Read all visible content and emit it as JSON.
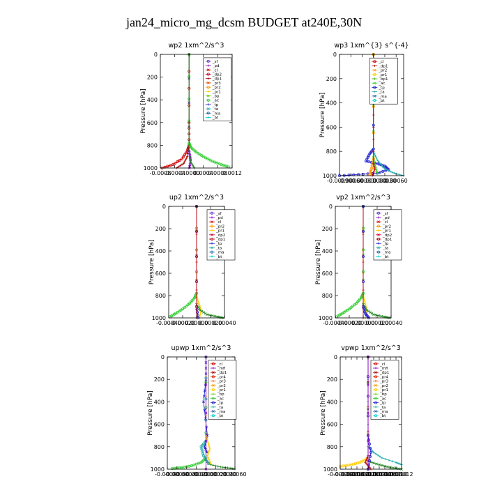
{
  "title": "jan24_micro_mg_dcsm  BUDGET at240E,30N",
  "chart_data": [
    {
      "type": "line",
      "title": "wp2   1xm^2/s^3",
      "ylabel": "Pressure [hPa]",
      "xlim": [
        -0.0008,
        0.0012
      ],
      "ylim": [
        1000,
        0
      ],
      "xticks": [
        -0.0008,
        -0.0004,
        0,
        0.0004,
        0.0008,
        0.0012
      ],
      "xticklabels": [
        "-0.0008",
        "-0.0004",
        "-0.0000",
        "0.0004",
        "0.0008",
        "0.0012"
      ],
      "yticks": [
        0,
        200,
        400,
        600,
        800,
        1000
      ],
      "legend": [
        "_sf",
        "_pd",
        "_cl",
        "_dp2",
        "_dp1",
        "_pr3",
        "_pr2",
        "_pr1",
        "_bp",
        "_ac",
        "_tp",
        "_ta",
        "_ma",
        "_bt"
      ],
      "legend_corner": [
        0.0004,
        30
      ],
      "series": [
        {
          "name": "_cl",
          "color": "#cc0000",
          "x": [
            0,
            0,
            0,
            -5e-05,
            -0.0002,
            -0.00045,
            -0.00075
          ],
          "y": [
            0,
            600,
            800,
            850,
            920,
            970,
            1000
          ]
        },
        {
          "name": "_dp1",
          "color": "#aa0000",
          "x": [
            0,
            0,
            -5e-05,
            -0.00015,
            -0.00035
          ],
          "y": [
            0,
            800,
            900,
            960,
            1000
          ]
        },
        {
          "name": "_pd",
          "color": "#8800cc",
          "x": [
            0,
            0,
            3e-05,
            4e-05,
            1e-05
          ],
          "y": [
            0,
            850,
            900,
            940,
            1000
          ]
        },
        {
          "name": "_ac",
          "color": "#33cc33",
          "x": [
            0,
            0,
            5e-05,
            0.0002,
            0.0004,
            0.00065,
            0.0009,
            0.0011
          ],
          "y": [
            0,
            780,
            820,
            860,
            900,
            940,
            970,
            990
          ]
        },
        {
          "name": "_pr1",
          "color": "#228822",
          "x": [
            0,
            0,
            5e-05,
            0.00015
          ],
          "y": [
            0,
            850,
            950,
            1000
          ]
        }
      ]
    },
    {
      "type": "line",
      "title": "wp3   1xm^{3} s^{-4}",
      "ylabel": "Pressure [hPa]",
      "xlim": [
        -0.0009,
        0.0008
      ],
      "ylim": [
        1000,
        0
      ],
      "xticks": [
        -0.0009,
        -0.0006,
        -0.0003,
        0,
        0.0003,
        0.0006
      ],
      "xticklabels": [
        "-0.00090",
        "-0.00060",
        "-0.00030",
        "0.000000",
        "0.00030",
        "0.00060"
      ],
      "yticks": [
        0,
        200,
        400,
        600,
        800,
        1000
      ],
      "legend": [
        "_cl",
        "_dp1",
        "_pr2",
        "_pr1",
        "_bp1",
        "_ac",
        "_tp",
        "_ta",
        "_ma",
        "_bt"
      ],
      "legend_corner": [
        -0.0001,
        30
      ],
      "series": [
        {
          "name": "_tp",
          "color": "#2222cc",
          "x": [
            0,
            0,
            -0.0001,
            -0.0002,
            0.0001,
            0.0003,
            0.0004,
            0.0001,
            -0.0004,
            -0.0009
          ],
          "y": [
            0,
            780,
            820,
            880,
            900,
            920,
            950,
            980,
            990,
            1000
          ]
        },
        {
          "name": "_ta",
          "color": "#22aaaa",
          "x": [
            0,
            0,
            0.0001,
            0.00025,
            0.0004,
            0.0006,
            0.0008
          ],
          "y": [
            0,
            800,
            870,
            930,
            960,
            985,
            1000
          ]
        },
        {
          "name": "_ac",
          "color": "#33cc33",
          "x": [
            0,
            0,
            5e-05,
            0.0001
          ],
          "y": [
            0,
            850,
            930,
            980
          ]
        },
        {
          "name": "_pr2",
          "color": "#ff9900",
          "x": [
            0,
            0,
            -5e-05,
            -0.0001
          ],
          "y": [
            0,
            860,
            940,
            990
          ]
        },
        {
          "name": "_cl",
          "color": "#cc0000",
          "x": [
            0,
            0,
            0,
            3e-05,
            -3e-05
          ],
          "y": [
            0,
            500,
            900,
            950,
            1000
          ]
        }
      ]
    },
    {
      "type": "line",
      "title": "up2   1xm^2/s^3",
      "ylabel": "Pressure [hPa]",
      "xlim": [
        -0.0004,
        0.0004
      ],
      "ylim": [
        1000,
        0
      ],
      "xticks": [
        -0.0004,
        -0.0002,
        0,
        0.0002,
        0.0004
      ],
      "xticklabels": [
        "-0.00040",
        "-0.00020",
        "0.00000",
        "0.00020",
        "0.00040"
      ],
      "yticks": [
        0,
        200,
        400,
        600,
        800,
        1000
      ],
      "legend": [
        "_sf",
        "_pd",
        "_cl",
        "_pr2",
        "_pr1",
        "_dp2",
        "_dp1",
        "_tp",
        "_ta",
        "_ma",
        "_bt"
      ],
      "legend_corner": [
        0.00015,
        30
      ],
      "series": [
        {
          "name": "_dp2",
          "color": "#33cc33",
          "x": [
            0,
            0,
            -3e-05,
            -0.0001,
            -0.0002,
            -0.0003,
            -0.00038
          ],
          "y": [
            0,
            780,
            820,
            870,
            920,
            960,
            990
          ]
        },
        {
          "name": "_pr1",
          "color": "#ffcc00",
          "x": [
            0,
            0,
            2e-05,
            5e-05,
            6e-05,
            4e-05
          ],
          "y": [
            0,
            800,
            850,
            900,
            950,
            1000
          ]
        },
        {
          "name": "_dp1",
          "color": "#228822",
          "x": [
            0,
            0,
            5e-05,
            0.00015,
            0.0003,
            0.00038
          ],
          "y": [
            0,
            880,
            930,
            970,
            990,
            1000
          ]
        },
        {
          "name": "_tp",
          "color": "#2222cc",
          "x": [
            0,
            0,
            2e-05
          ],
          "y": [
            0,
            900,
            1000
          ]
        },
        {
          "name": "_cl",
          "color": "#cc0000",
          "x": [
            0,
            0
          ],
          "y": [
            0,
            1000
          ]
        }
      ]
    },
    {
      "type": "line",
      "title": "vp2   1xm^2/s^3",
      "ylabel": "Pressure [hPa]",
      "xlim": [
        -0.0004,
        0.0004
      ],
      "ylim": [
        1000,
        0
      ],
      "xticks": [
        -0.0004,
        -0.0002,
        0,
        0.0002,
        0.0004
      ],
      "xticklabels": [
        "-0.00040",
        "-0.00020",
        "0.00000",
        "0.00020",
        "0.00040"
      ],
      "yticks": [
        0,
        200,
        400,
        600,
        800,
        1000
      ],
      "legend": [
        "_sf",
        "_pd",
        "_cl",
        "_pr2",
        "_pr1",
        "_dp2",
        "_dp1",
        "_tp",
        "_ta",
        "_ma",
        "_bt"
      ],
      "legend_corner": [
        0.00015,
        30
      ],
      "series": [
        {
          "name": "_dp2",
          "color": "#33cc33",
          "x": [
            0,
            0,
            -3e-05,
            -0.0001,
            -0.0002,
            -0.0003,
            -0.00038
          ],
          "y": [
            0,
            780,
            820,
            870,
            920,
            960,
            990
          ]
        },
        {
          "name": "_pr1",
          "color": "#ffcc00",
          "x": [
            0,
            0,
            2e-05,
            4e-05,
            5e-05,
            3e-05
          ],
          "y": [
            0,
            800,
            850,
            900,
            950,
            1000
          ]
        },
        {
          "name": "_dp1",
          "color": "#228822",
          "x": [
            0,
            0,
            5e-05,
            0.00015,
            0.0003,
            0.00038
          ],
          "y": [
            0,
            880,
            930,
            970,
            990,
            1000
          ]
        },
        {
          "name": "_tp",
          "color": "#2222cc",
          "x": [
            0,
            0,
            3e-05,
            8e-05
          ],
          "y": [
            0,
            900,
            960,
            1000
          ]
        },
        {
          "name": "_cl",
          "color": "#cc0000",
          "x": [
            0,
            0
          ],
          "y": [
            0,
            1000
          ]
        }
      ]
    },
    {
      "type": "line",
      "title": "upwp   1xm^2/s^3",
      "ylabel": "Pressure [hPa]",
      "xlim": [
        -0.0008,
        0.0006
      ],
      "ylim": [
        1000,
        0
      ],
      "xticks": [
        -0.0008,
        -0.0006,
        -0.0004,
        -0.0002,
        0,
        0.0002,
        0.0004,
        0.0006
      ],
      "xticklabels": [
        "-0.00080",
        "-0.00060",
        "-0.00040",
        "-0.00020",
        "0.00000",
        "0.00020",
        "0.00040",
        "0.00060"
      ],
      "yticks": [
        0,
        200,
        400,
        600,
        800,
        1000
      ],
      "legend": [
        "_cl",
        "_mfl",
        "_dp1",
        "_pr4",
        "_pr3",
        "_pr2",
        "_pr1",
        "_bp",
        "_ac",
        "_tp",
        "_ta",
        "_ma",
        "_bt"
      ],
      "legend_corner": [
        5e-05,
        30
      ],
      "series": [
        {
          "name": "_ac",
          "color": "#33cc33",
          "x": [
            0,
            0,
            -0.0001,
            -0.0003,
            -0.0005,
            -0.0007
          ],
          "y": [
            0,
            900,
            940,
            970,
            985,
            995
          ]
        },
        {
          "name": "_pr1",
          "color": "#228822",
          "x": [
            0,
            0,
            0.0001,
            0.0003,
            0.0005,
            0.0006
          ],
          "y": [
            0,
            920,
            960,
            980,
            990,
            1000
          ]
        },
        {
          "name": "_tp",
          "color": "#2222cc",
          "x": [
            0,
            0,
            -5e-05,
            3e-05,
            -3e-05,
            2e-05
          ],
          "y": [
            0,
            200,
            400,
            700,
            800,
            850
          ]
        },
        {
          "name": "_ta",
          "color": "#22aaaa",
          "x": [
            0,
            0,
            -0.0001,
            -5e-05,
            5e-05
          ],
          "y": [
            0,
            750,
            800,
            880,
            950
          ]
        },
        {
          "name": "_pr2",
          "color": "#ffcc00",
          "x": [
            0,
            0,
            5e-05,
            8e-05,
            3e-05,
            0.0001
          ],
          "y": [
            0,
            700,
            770,
            820,
            880,
            950
          ]
        },
        {
          "name": "_mfl",
          "color": "#8800cc",
          "x": [
            0,
            0
          ],
          "y": [
            0,
            1000
          ]
        }
      ]
    },
    {
      "type": "line",
      "title": "vpwp   1xm^2/s^3",
      "ylabel": "Pressure [hPa]",
      "xlim": [
        -0.0001,
        0.00012
      ],
      "ylim": [
        1000,
        0
      ],
      "xticks": [
        -0.0001,
        -8e-05,
        -6e-05,
        -4e-05,
        -2e-05,
        0,
        2e-05,
        4e-05,
        6e-05,
        8e-05,
        0.0001,
        0.00012
      ],
      "xticklabels": [
        "-0.00010",
        "-0.00008",
        "-0.00006",
        "-0.00004",
        "-0.00002",
        "0.00000",
        "0.00002",
        "0.00004",
        "0.00006",
        "0.00008",
        "0.00010",
        "0.00012"
      ],
      "yticks": [
        0,
        200,
        400,
        600,
        800,
        1000
      ],
      "legend": [
        "_cl",
        "_mfl",
        "_dp1",
        "_pr4",
        "_pr3",
        "_pr2",
        "_pr1",
        "_bp",
        "_ac",
        "_tp",
        "_ta",
        "_ma",
        "_bt"
      ],
      "legend_corner": [
        1e-05,
        30
      ],
      "series": [
        {
          "name": "_pr2",
          "color": "#ffcc00",
          "x": [
            0,
            0,
            -3e-05,
            -6e-05,
            -0.0001
          ],
          "y": [
            0,
            900,
            940,
            960,
            975
          ]
        },
        {
          "name": "_ta",
          "color": "#22aaaa",
          "x": [
            0,
            0,
            2e-05,
            5e-05,
            0.0001,
            0.00012
          ],
          "y": [
            0,
            800,
            850,
            900,
            940,
            960
          ]
        },
        {
          "name": "_pr1",
          "color": "#228822",
          "x": [
            0,
            0,
            4e-05,
            8e-05,
            0.00012
          ],
          "y": [
            0,
            930,
            960,
            985,
            1000
          ]
        },
        {
          "name": "_tp",
          "color": "#2222cc",
          "x": [
            0,
            0,
            1e-05,
            0
          ],
          "y": [
            0,
            700,
            850,
            1000
          ]
        },
        {
          "name": "_dp1",
          "color": "#cc0000",
          "x": [
            0,
            0,
            -1e-05,
            1e-05
          ],
          "y": [
            0,
            880,
            940,
            1000
          ]
        },
        {
          "name": "_mfl",
          "color": "#8800cc",
          "x": [
            0,
            0
          ],
          "y": [
            0,
            1000
          ]
        }
      ]
    }
  ],
  "legend_colors": {
    "_sf": "#6633cc",
    "_pd": "#8800cc",
    "_cl": "#cc0000",
    "_mfl": "#8800cc",
    "_dp2": "#cc0033",
    "_dp1": "#aa0000",
    "_pr4": "#dd2200",
    "_pr3": "#ee4400",
    "_pr2": "#ff9900",
    "_pr1": "#ffcc00",
    "_bp": "#66cc00",
    "_bp1": "#33aa00",
    "_ac": "#33cc33",
    "_tp": "#2222cc",
    "_ta": "#22aaaa",
    "_ma": "#2266aa",
    "_bt": "#00cccc"
  }
}
